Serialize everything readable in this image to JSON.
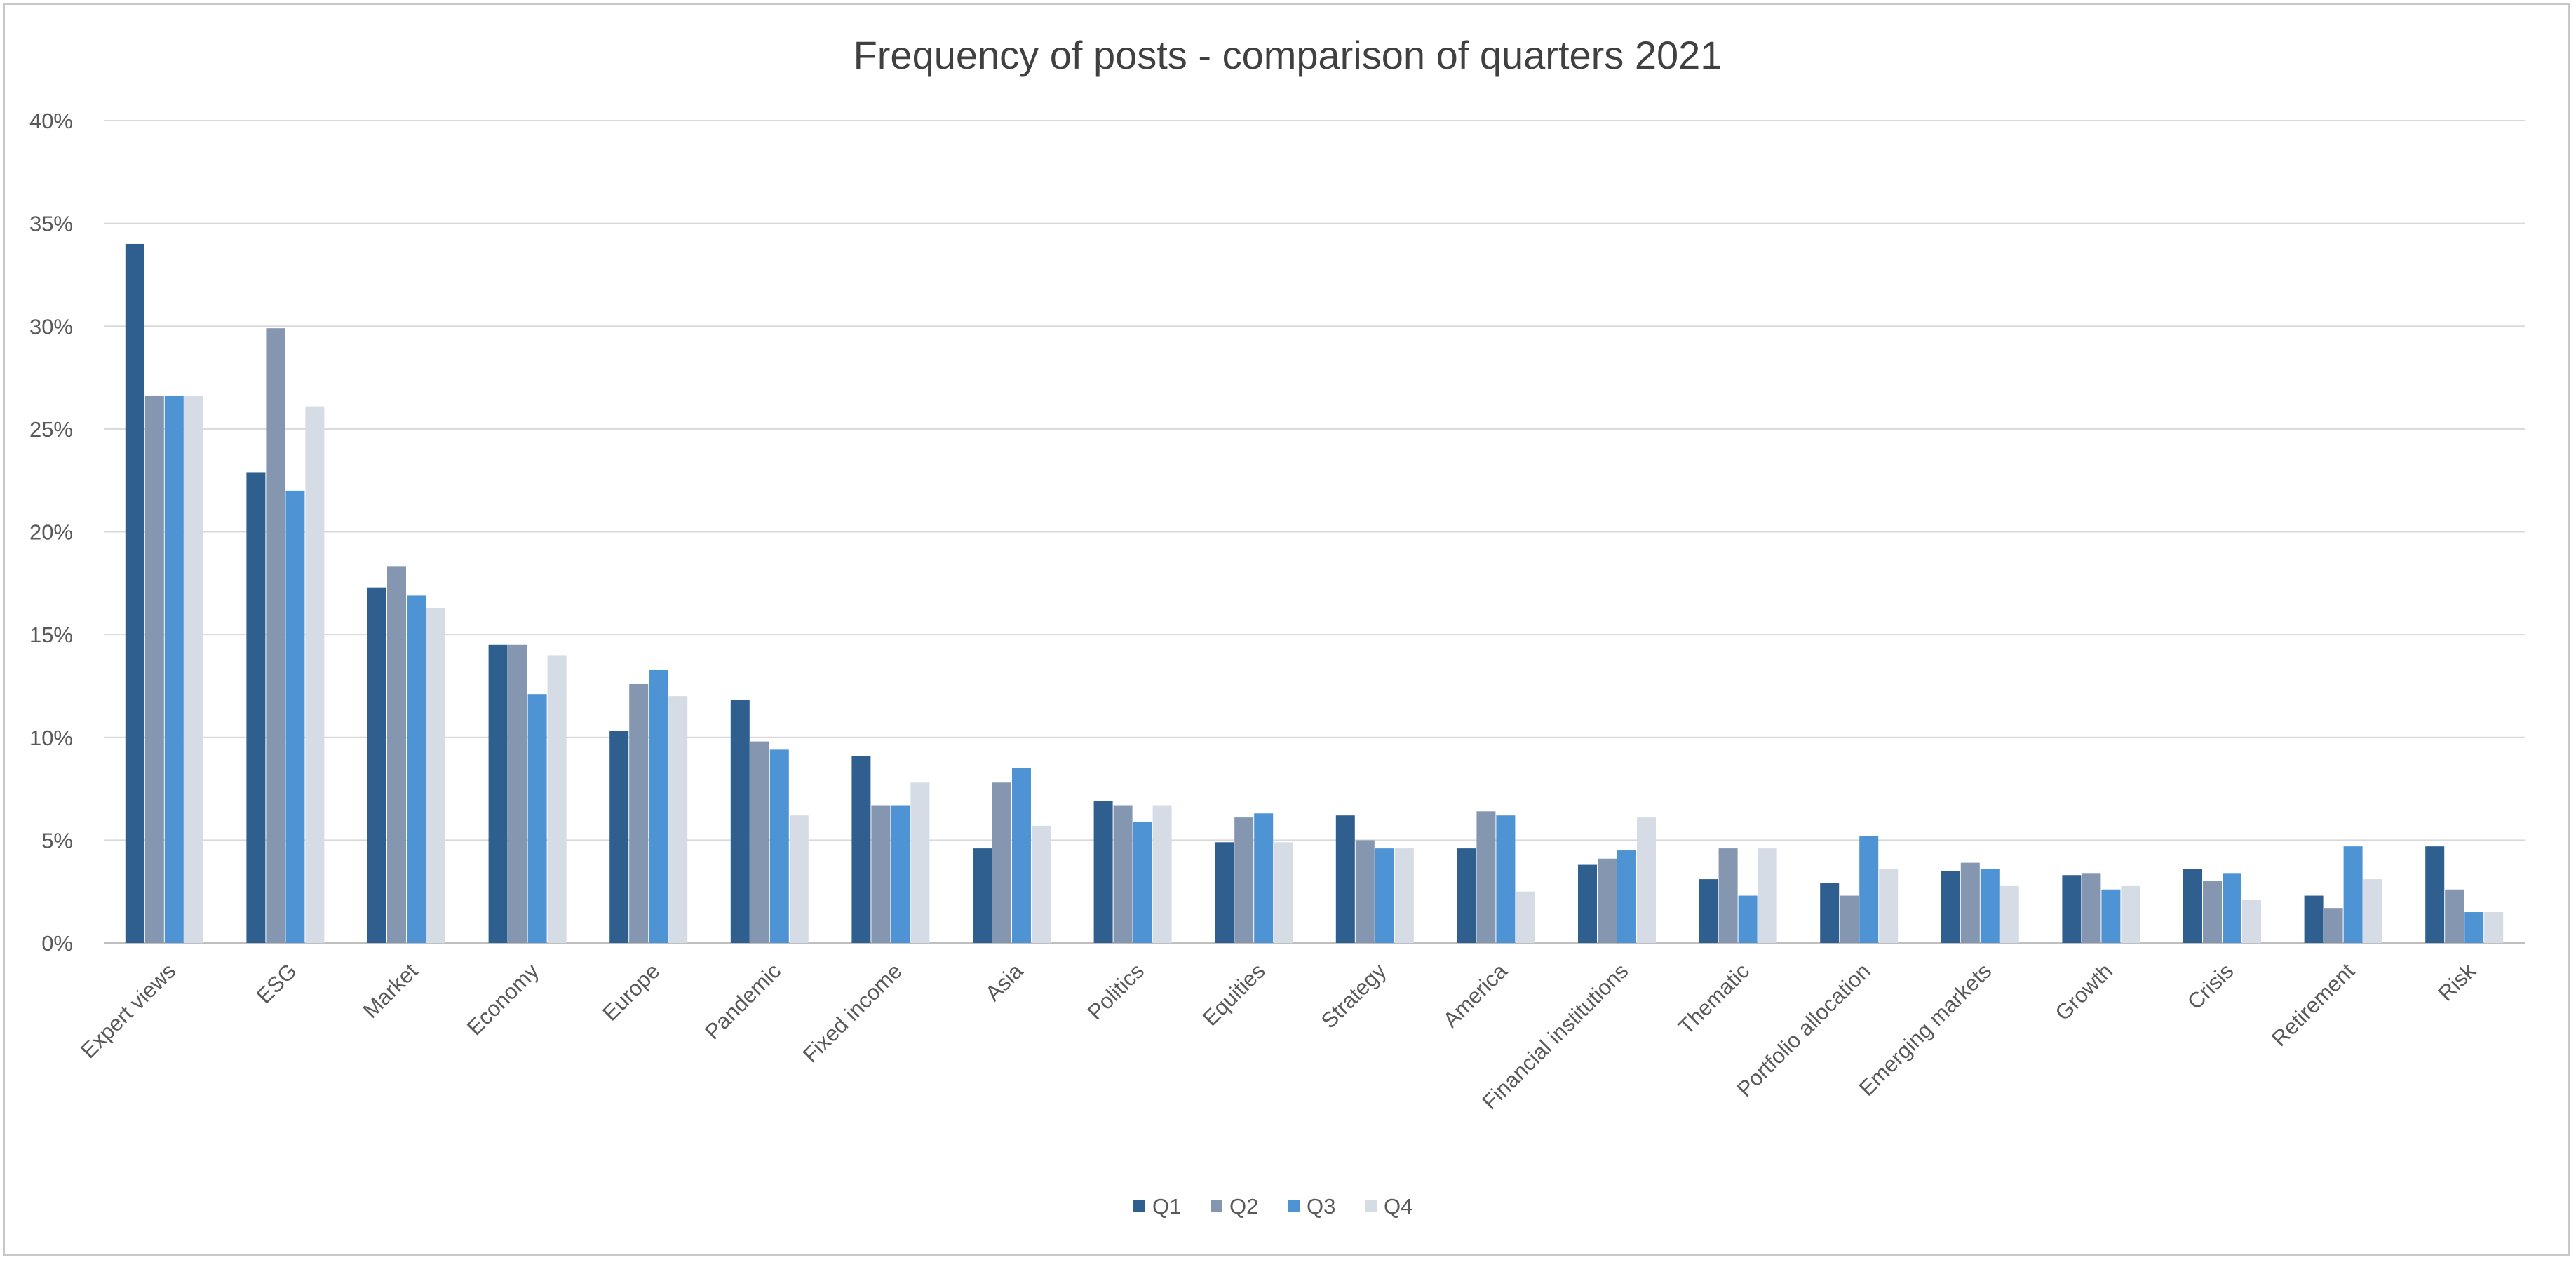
{
  "chart_data": {
    "type": "bar",
    "title": "Frequency of posts - comparison of quarters 2021",
    "xlabel": "",
    "ylabel": "",
    "ylim": [
      0,
      40
    ],
    "yticks": [
      "0%",
      "5%",
      "10%",
      "15%",
      "20%",
      "25%",
      "30%",
      "35%",
      "40%"
    ],
    "grid": true,
    "legend_position": "bottom",
    "categories": [
      "Expert views",
      "ESG",
      "Market",
      "Economy",
      "Europe",
      "Pandemic",
      "Fixed income",
      "Asia",
      "Politics",
      "Equities",
      "Strategy",
      "America",
      "Financial institutions",
      "Thematic",
      "Portfolio allocation",
      "Emerging markets",
      "Growth",
      "Crisis",
      "Retirement",
      "Risk"
    ],
    "series": [
      {
        "name": "Q1",
        "color": "#2e5f8f",
        "values": [
          34.0,
          22.9,
          17.3,
          14.5,
          10.3,
          11.8,
          9.1,
          4.6,
          6.9,
          4.9,
          6.2,
          4.6,
          3.8,
          3.1,
          2.9,
          3.5,
          3.3,
          3.6,
          2.3,
          4.7
        ]
      },
      {
        "name": "Q2",
        "color": "#8496b0",
        "values": [
          26.6,
          29.9,
          18.3,
          14.5,
          12.6,
          9.8,
          6.7,
          7.8,
          6.7,
          6.1,
          5.0,
          6.4,
          4.1,
          4.6,
          2.3,
          3.9,
          3.4,
          3.0,
          1.7,
          2.6
        ]
      },
      {
        "name": "Q3",
        "color": "#4e94d4",
        "values": [
          26.6,
          22.0,
          16.9,
          12.1,
          13.3,
          9.4,
          6.7,
          8.5,
          5.9,
          6.3,
          4.6,
          6.2,
          4.5,
          2.3,
          5.2,
          3.6,
          2.6,
          3.4,
          4.7,
          1.5
        ]
      },
      {
        "name": "Q4",
        "color": "#d6dce5",
        "values": [
          26.6,
          26.1,
          16.3,
          14.0,
          12.0,
          6.2,
          7.8,
          5.7,
          6.7,
          4.9,
          4.6,
          2.5,
          6.1,
          4.6,
          3.6,
          2.8,
          2.8,
          2.1,
          3.1,
          1.5
        ]
      }
    ]
  }
}
